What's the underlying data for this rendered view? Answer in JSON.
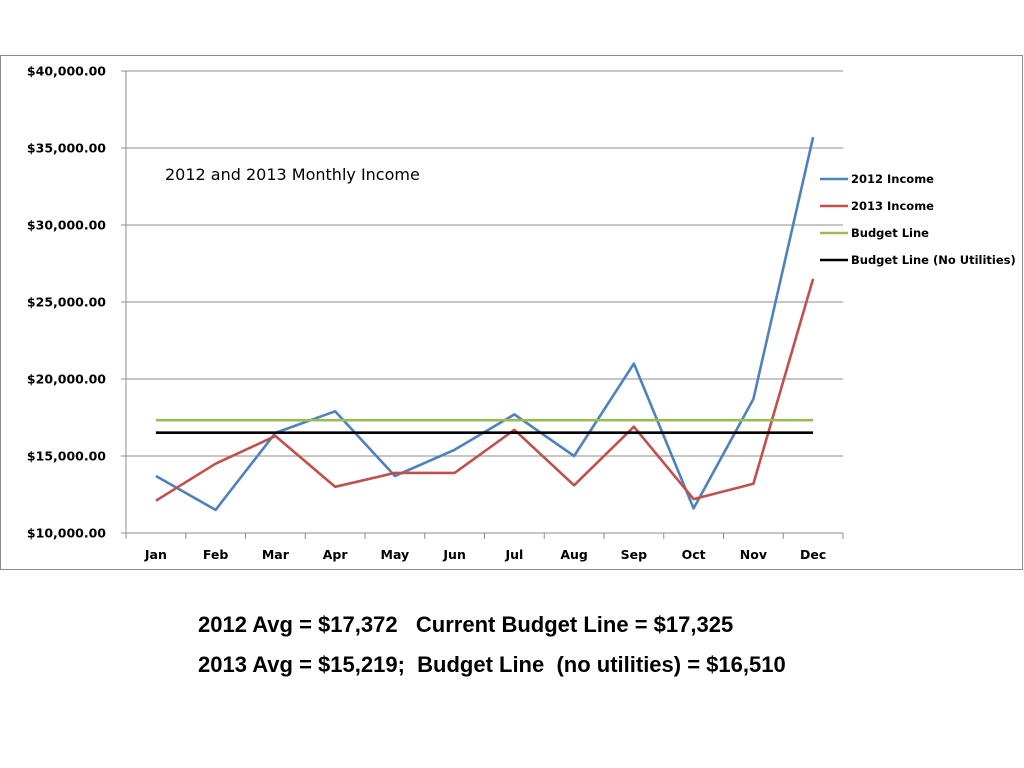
{
  "chart_data": {
    "type": "line",
    "title": "2012 and 2013 Monthly Income",
    "xlabel": "",
    "ylabel": "",
    "categories": [
      "Jan",
      "Feb",
      "Mar",
      "Apr",
      "May",
      "Jun",
      "Jul",
      "Aug",
      "Sep",
      "Oct",
      "Nov",
      "Dec"
    ],
    "ylim": [
      10000,
      40000
    ],
    "y_ticks": [
      10000,
      15000,
      20000,
      25000,
      30000,
      35000,
      40000
    ],
    "y_tick_labels": [
      "$10,000.00",
      "$15,000.00",
      "$20,000.00",
      "$25,000.00",
      "$30,000.00",
      "$35,000.00",
      "$40,000.00"
    ],
    "grid": true,
    "legend_position": "right",
    "series": [
      {
        "name": "2012 Income",
        "color": "#4f81bd",
        "values": [
          13700,
          11500,
          16500,
          17900,
          13700,
          15400,
          17700,
          15000,
          21000,
          11600,
          18700,
          35700
        ]
      },
      {
        "name": "2013 Income",
        "color": "#c0504d",
        "values": [
          12100,
          14500,
          16300,
          13000,
          13900,
          13900,
          16700,
          13100,
          16900,
          12200,
          13200,
          26500
        ]
      },
      {
        "name": "Budget Line",
        "color": "#9bbb59",
        "values": [
          17325,
          17325,
          17325,
          17325,
          17325,
          17325,
          17325,
          17325,
          17325,
          17325,
          17325,
          17325
        ]
      },
      {
        "name": "Budget Line (No Utilities)",
        "color": "#000000",
        "values": [
          16510,
          16510,
          16510,
          16510,
          16510,
          16510,
          16510,
          16510,
          16510,
          16510,
          16510,
          16510
        ]
      }
    ]
  },
  "summary": {
    "line1": "2012 Avg = $17,372   Current Budget Line = $17,325",
    "line2": "2013 Avg = $15,219;  Budget Line  (no utilities) = $16,510"
  }
}
